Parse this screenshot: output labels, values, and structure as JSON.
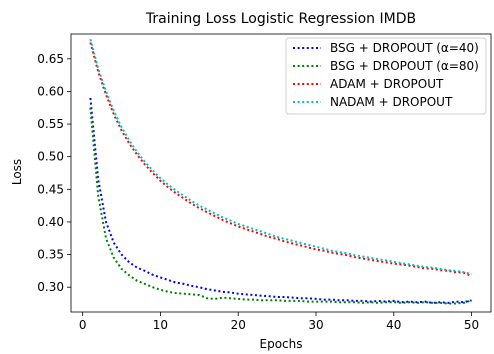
{
  "chart_data": {
    "type": "line",
    "title": "Training Loss Logistic Regression IMDB",
    "xlabel": "Epochs",
    "ylabel": "Loss",
    "xlim": [
      -1.5,
      52.5
    ],
    "ylim": [
      0.262,
      0.688
    ],
    "xticks": [
      0,
      10,
      20,
      30,
      40,
      50
    ],
    "yticks": [
      0.3,
      0.35,
      0.4,
      0.45,
      0.5,
      0.55,
      0.6,
      0.65
    ],
    "ytick_labels": [
      "0.30",
      "0.35",
      "0.40",
      "0.45",
      "0.50",
      "0.55",
      "0.60",
      "0.65"
    ],
    "grid": false,
    "legend_position": "top-right",
    "x": [
      1,
      2,
      3,
      4,
      5,
      6,
      7,
      8,
      9,
      10,
      11,
      12,
      13,
      14,
      15,
      16,
      17,
      18,
      19,
      20,
      21,
      22,
      23,
      24,
      25,
      26,
      27,
      28,
      29,
      30,
      31,
      32,
      33,
      34,
      35,
      36,
      37,
      38,
      39,
      40,
      41,
      42,
      43,
      44,
      45,
      46,
      47,
      48,
      49,
      50
    ],
    "series": [
      {
        "name": "BSG + DROPOUT (α=40)",
        "color": "#0000ff",
        "values": [
          0.59,
          0.465,
          0.4,
          0.368,
          0.35,
          0.338,
          0.33,
          0.325,
          0.319,
          0.315,
          0.311,
          0.307,
          0.305,
          0.302,
          0.3,
          0.297,
          0.295,
          0.293,
          0.292,
          0.29,
          0.289,
          0.288,
          0.287,
          0.286,
          0.285,
          0.285,
          0.284,
          0.283,
          0.283,
          0.282,
          0.281,
          0.281,
          0.28,
          0.28,
          0.279,
          0.279,
          0.278,
          0.279,
          0.278,
          0.279,
          0.277,
          0.278,
          0.277,
          0.278,
          0.276,
          0.277,
          0.276,
          0.278,
          0.277,
          0.28
        ]
      },
      {
        "name": "BSG + DROPOUT (α=80)",
        "color": "#008000",
        "values": [
          0.575,
          0.44,
          0.375,
          0.345,
          0.328,
          0.318,
          0.31,
          0.305,
          0.3,
          0.296,
          0.293,
          0.291,
          0.29,
          0.289,
          0.288,
          0.283,
          0.282,
          0.284,
          0.283,
          0.282,
          0.281,
          0.281,
          0.28,
          0.28,
          0.28,
          0.279,
          0.279,
          0.279,
          0.278,
          0.278,
          0.278,
          0.278,
          0.277,
          0.277,
          0.277,
          0.276,
          0.277,
          0.276,
          0.277,
          0.277,
          0.276,
          0.277,
          0.276,
          0.277,
          0.276,
          0.276,
          0.275,
          0.275,
          0.276,
          0.28
        ]
      },
      {
        "name": "ADAM + DROPOUT",
        "color": "#ff0000",
        "values": [
          0.675,
          0.63,
          0.595,
          0.565,
          0.54,
          0.52,
          0.503,
          0.488,
          0.475,
          0.463,
          0.453,
          0.444,
          0.436,
          0.428,
          0.421,
          0.415,
          0.409,
          0.403,
          0.398,
          0.393,
          0.389,
          0.385,
          0.381,
          0.377,
          0.374,
          0.37,
          0.367,
          0.364,
          0.361,
          0.358,
          0.356,
          0.353,
          0.351,
          0.349,
          0.346,
          0.344,
          0.342,
          0.34,
          0.338,
          0.336,
          0.335,
          0.333,
          0.331,
          0.329,
          0.328,
          0.326,
          0.325,
          0.323,
          0.322,
          0.317
        ]
      },
      {
        "name": "NADAM + DROPOUT",
        "color": "#00bfbf",
        "values": [
          0.68,
          0.635,
          0.6,
          0.57,
          0.545,
          0.525,
          0.507,
          0.492,
          0.479,
          0.467,
          0.457,
          0.448,
          0.44,
          0.432,
          0.425,
          0.419,
          0.413,
          0.407,
          0.402,
          0.397,
          0.393,
          0.389,
          0.385,
          0.381,
          0.377,
          0.374,
          0.371,
          0.368,
          0.365,
          0.362,
          0.359,
          0.356,
          0.354,
          0.352,
          0.349,
          0.347,
          0.345,
          0.343,
          0.341,
          0.339,
          0.337,
          0.335,
          0.333,
          0.331,
          0.33,
          0.328,
          0.326,
          0.325,
          0.323,
          0.32
        ]
      }
    ]
  }
}
